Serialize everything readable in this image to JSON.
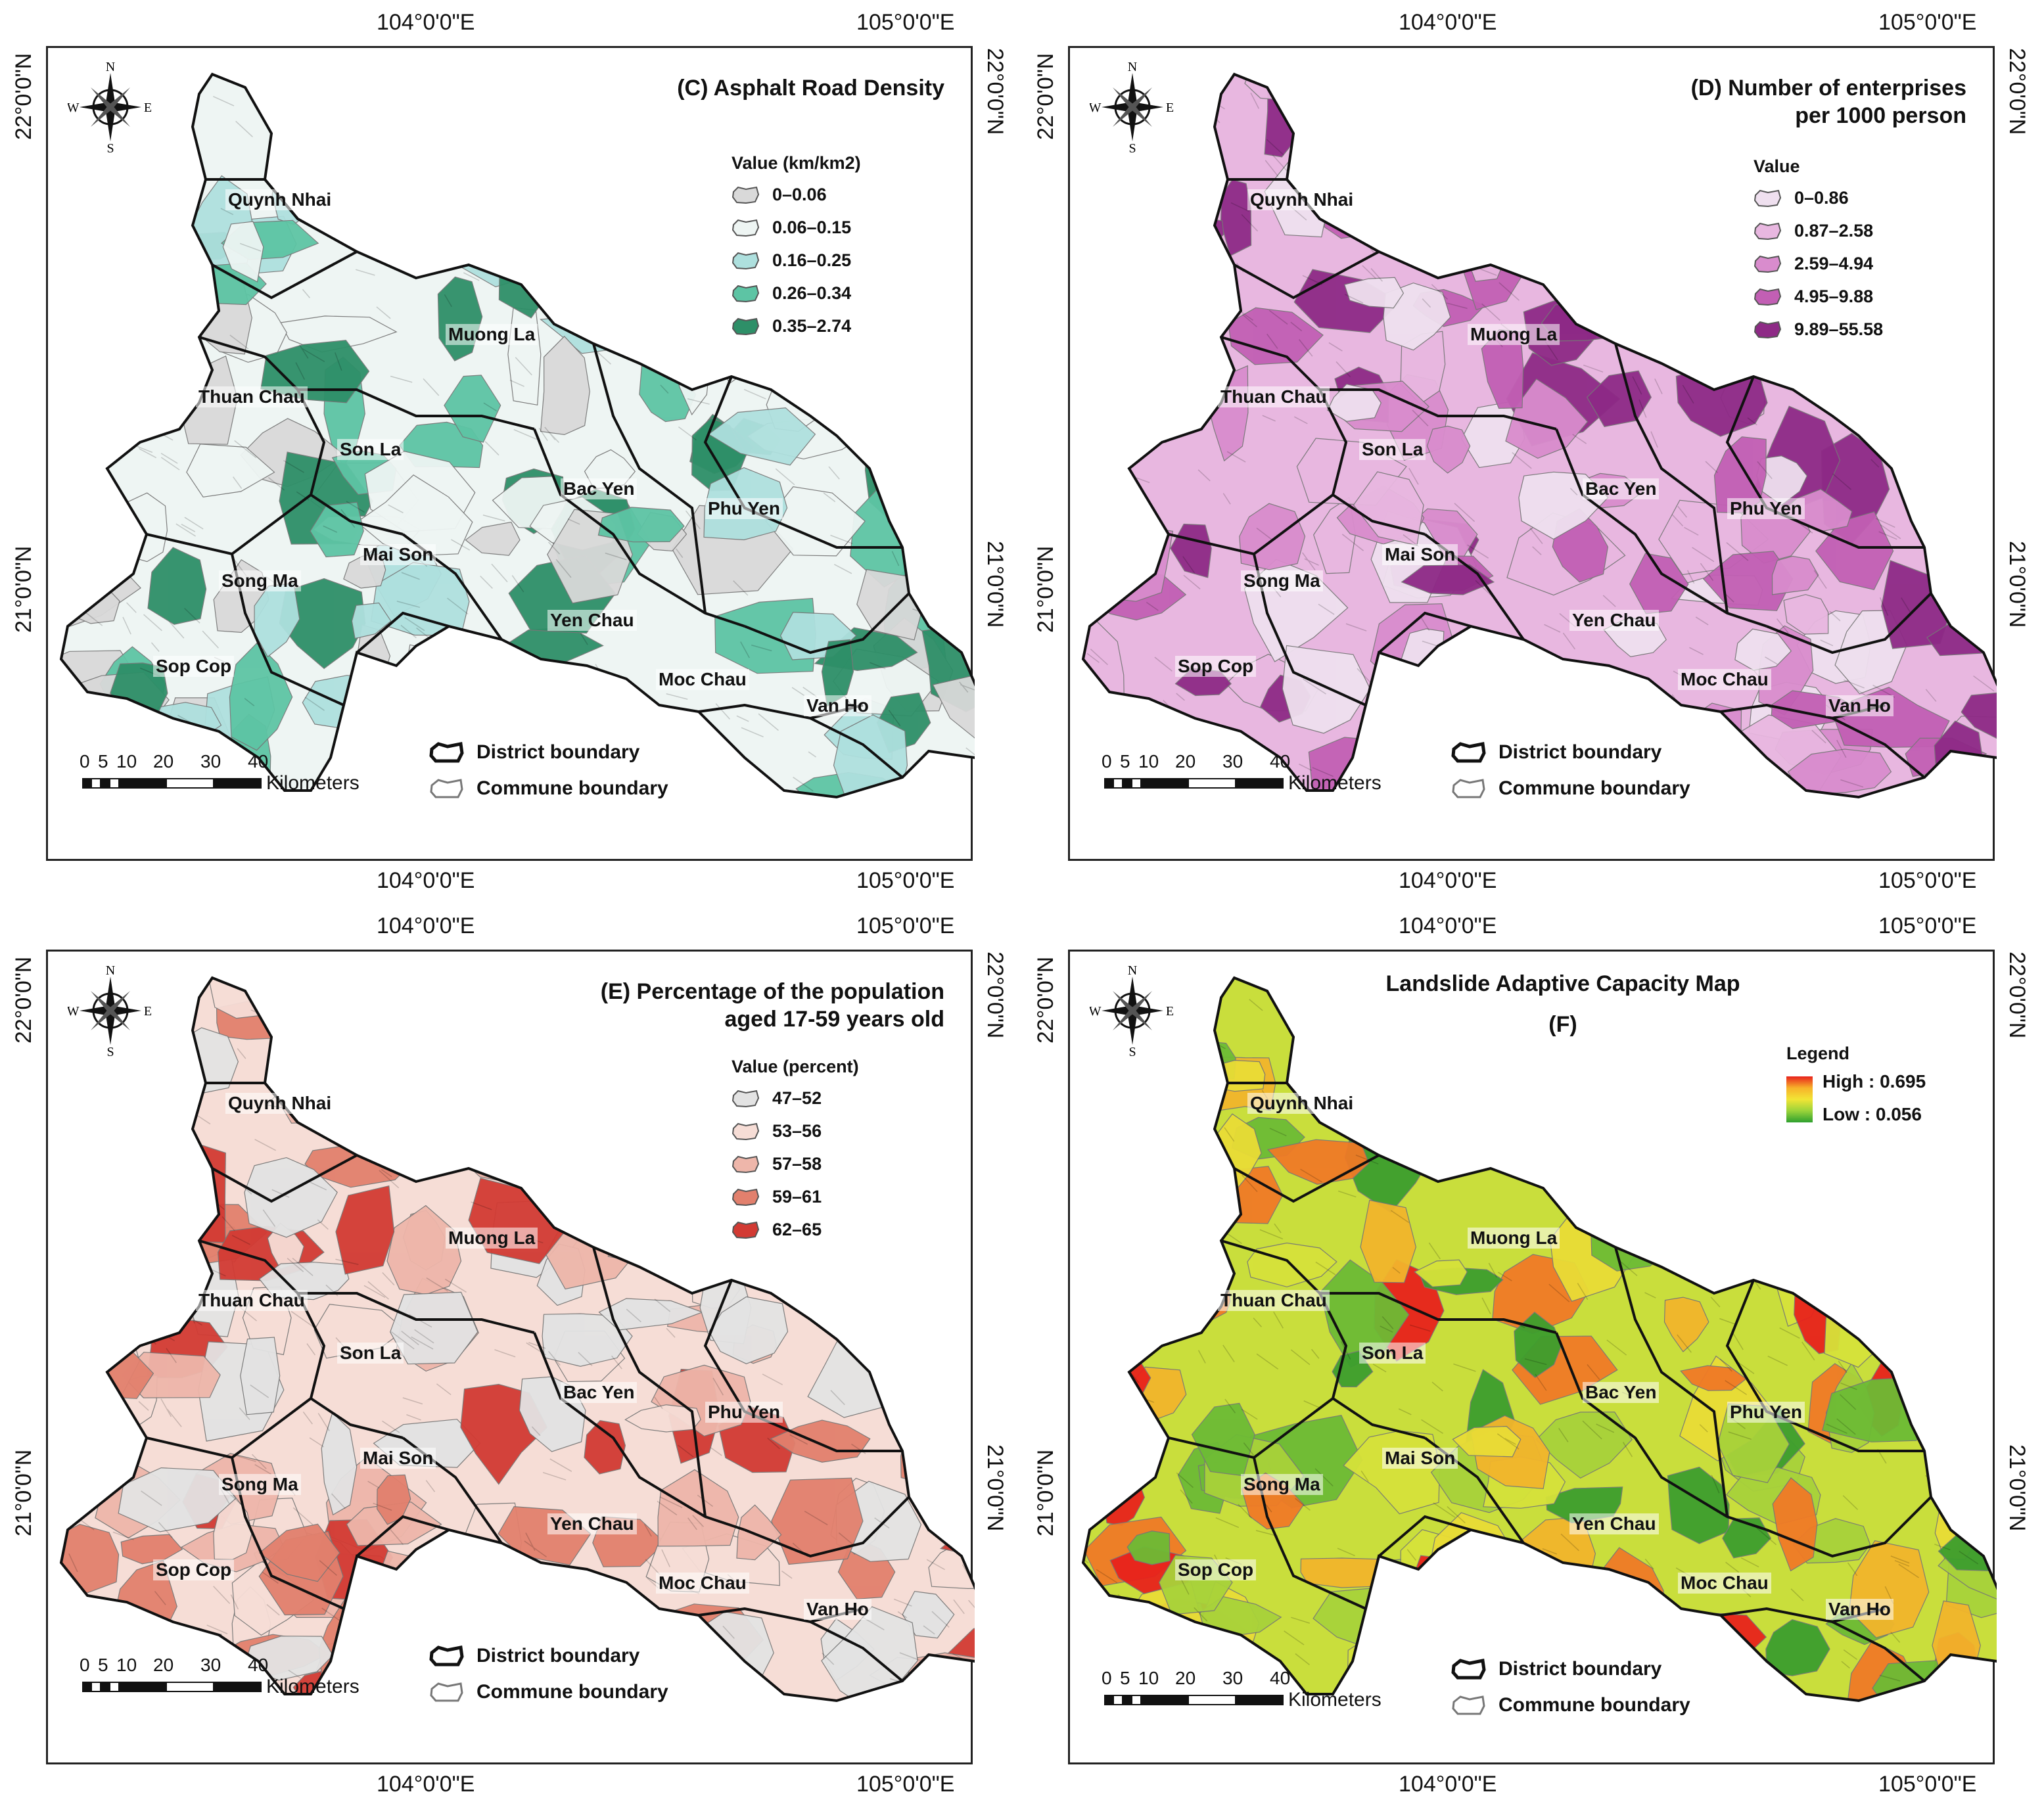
{
  "coords": {
    "lon1": "104°0'0\"E",
    "lon2": "105°0'0\"E",
    "lat1": "22°0'0\"N",
    "lat2": "21°0'0\"N"
  },
  "compass": {
    "n": "N",
    "s": "S",
    "e": "E",
    "w": "W"
  },
  "scale": {
    "ticks": [
      "0",
      "5",
      "10",
      "20",
      "30",
      "40"
    ],
    "unit": "Kilometers"
  },
  "boundaries": {
    "district": "District boundary",
    "commune": "Commune boundary"
  },
  "districts": [
    "Quynh Nhai",
    "Muong La",
    "Thuan Chau",
    "Son La",
    "Bac Yen",
    "Phu Yen",
    "Mai Son",
    "Song Ma",
    "Yen Chau",
    "Sop Cop",
    "Moc Chau",
    "Van Ho"
  ],
  "panels": [
    {
      "title_line1": "(C) Asphalt Road Density",
      "title_line2": "",
      "legend_title": "Value (km/km2)",
      "classes": [
        {
          "label": "0–0.06",
          "color": "#d9d9d9"
        },
        {
          "label": "0.06–0.15",
          "color": "#eef5f3"
        },
        {
          "label": "0.16–0.25",
          "color": "#aee0de"
        },
        {
          "label": "0.26–0.34",
          "color": "#5dc4a4"
        },
        {
          "label": "0.35–2.74",
          "color": "#2e8f68"
        }
      ]
    },
    {
      "title_line1": "(D) Number of enterprises",
      "title_line2": "per 1000 person",
      "legend_title": "Value",
      "classes": [
        {
          "label": "0–0.86",
          "color": "#efe0ef"
        },
        {
          "label": "0.87–2.58",
          "color": "#e8b7e0"
        },
        {
          "label": "2.59–4.94",
          "color": "#d98ccd"
        },
        {
          "label": "4.95–9.88",
          "color": "#c25fb4"
        },
        {
          "label": "9.89–55.58",
          "color": "#8e2a86"
        }
      ]
    },
    {
      "title_line1": "(E) Percentage of the population",
      "title_line2": "aged 17-59 years old",
      "legend_title": "Value (percent)",
      "classes": [
        {
          "label": "47–52",
          "color": "#e3e3e3"
        },
        {
          "label": "53–56",
          "color": "#f6ddd6"
        },
        {
          "label": "57–58",
          "color": "#eeb6aa"
        },
        {
          "label": "59–61",
          "color": "#e2806d"
        },
        {
          "label": "62–65",
          "color": "#d23a33"
        }
      ]
    },
    {
      "title_line1": "Landslide Adaptive Capacity Map",
      "title_line2": "(F)",
      "legend_title": "Legend",
      "gradient_high": "High : 0.695",
      "gradient_low": "Low : 0.056"
    }
  ]
}
